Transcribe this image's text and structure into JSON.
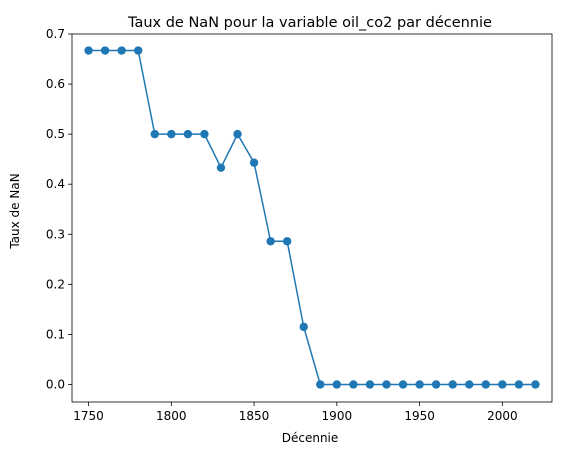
{
  "chart_data": {
    "type": "line",
    "title": "Taux de NaN pour la variable oil_co2 par décennie",
    "xlabel": "Décennie",
    "ylabel": "Taux de NaN",
    "xlim": [
      1740,
      2030
    ],
    "ylim": [
      -0.035,
      0.7
    ],
    "xticks": [
      "1750",
      "1800",
      "1850",
      "1900",
      "1950",
      "2000"
    ],
    "yticks": [
      "0.0",
      "0.1",
      "0.2",
      "0.3",
      "0.4",
      "0.5",
      "0.6",
      "0.7"
    ],
    "grid": false,
    "legend": "none",
    "color": "#1f77b4",
    "marker": "circle",
    "series": [
      {
        "x": [
          1750,
          1760,
          1770,
          1780,
          1790,
          1800,
          1810,
          1820,
          1830,
          1840,
          1850,
          1860,
          1870,
          1880,
          1890,
          1900,
          1910,
          1920,
          1930,
          1940,
          1950,
          1960,
          1970,
          1980,
          1990,
          2000,
          2010,
          2020
        ],
        "values": [
          0.667,
          0.667,
          0.667,
          0.667,
          0.5,
          0.5,
          0.5,
          0.5,
          0.433,
          0.5,
          0.443,
          0.286,
          0.286,
          0.115,
          0.0,
          0.0,
          0.0,
          0.0,
          0.0,
          0.0,
          0.0,
          0.0,
          0.0,
          0.0,
          0.0,
          0.0,
          0.0,
          0.0
        ]
      }
    ]
  }
}
